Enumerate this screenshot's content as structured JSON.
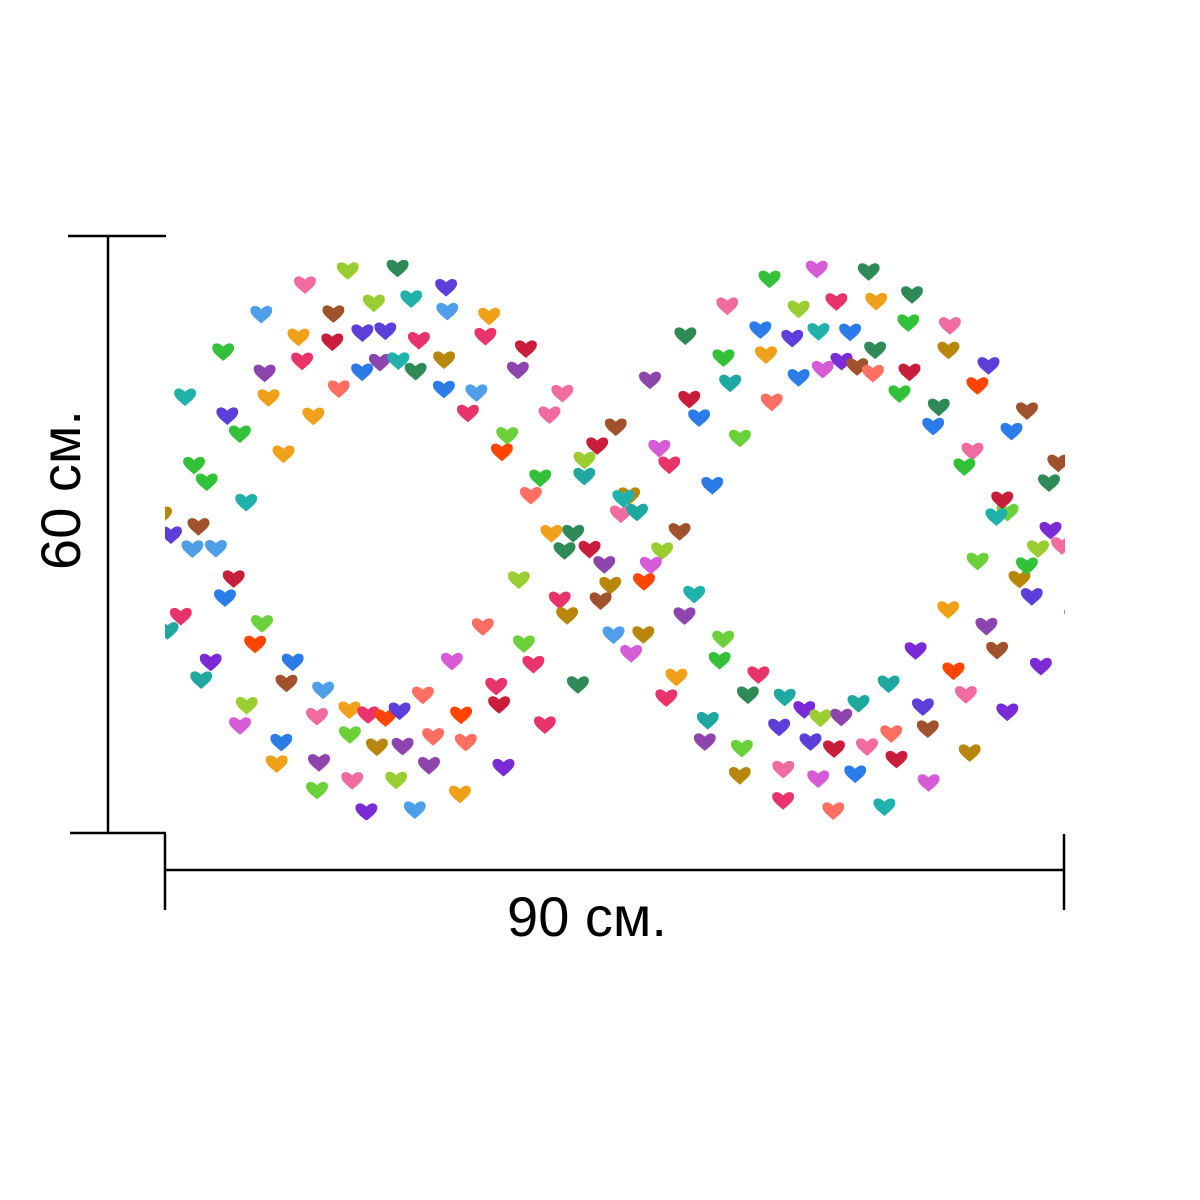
{
  "dimensions": {
    "height_label": "60 см.",
    "width_label": "90 см."
  },
  "artwork": {
    "motif": "heart-icon",
    "palette": [
      "#e8336b",
      "#7a2bd6",
      "#2b7be8",
      "#34c13a",
      "#f0a019",
      "#c81e3c",
      "#1fa8a0",
      "#8e44ad",
      "#f06ba0",
      "#6bd13b",
      "#b8860b",
      "#5b3fd8",
      "#ff6f61",
      "#2e8b57",
      "#d65bd6",
      "#4f9ee8",
      "#a0522d",
      "#9acd32",
      "#ff4500",
      "#20b2aa"
    ]
  }
}
